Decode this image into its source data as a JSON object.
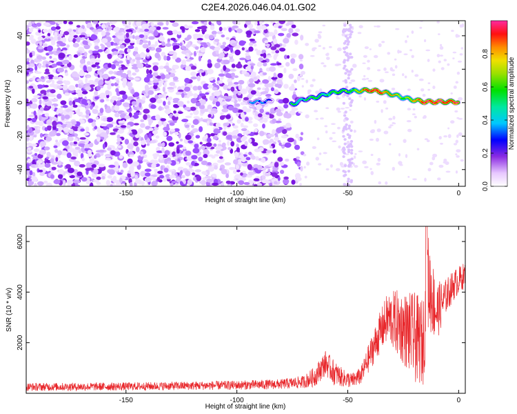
{
  "title": "C2E4.2026.046.04.01.G02",
  "chart_data": [
    {
      "type": "heatmap",
      "xlabel": "Height of straight line (km)",
      "ylabel": "Frequency (Hz)",
      "xlim": [
        -195,
        3
      ],
      "ylim": [
        -50,
        49
      ],
      "xticks": [
        -150,
        -100,
        -50,
        0
      ],
      "yticks": [
        -40,
        -20,
        0,
        20,
        40
      ],
      "colorbar": {
        "label": "Normalized spectral amplitude",
        "range": [
          0,
          1
        ],
        "ticks": [
          "0.0",
          "0.2",
          "0.4",
          "0.6",
          "0.8"
        ],
        "tick_values": [
          0.0,
          0.2,
          0.4,
          0.6,
          0.8
        ]
      },
      "ridge": {
        "description_points_height_km": [
          -94,
          -88,
          -84,
          -75,
          -70,
          -65,
          -60,
          -55,
          -50,
          -45,
          -40,
          -35,
          -30,
          -25,
          -20,
          -15,
          -10,
          -5,
          0
        ],
        "description_points_freq_hz": [
          0.5,
          0.5,
          1.5,
          -1,
          2,
          3,
          5,
          6.5,
          7,
          7,
          7.5,
          6.5,
          5,
          3,
          1.5,
          0.5,
          0.5,
          0.5,
          0.5
        ],
        "amplitude": [
          0.35,
          0.3,
          0.2,
          0.5,
          0.45,
          0.55,
          0.5,
          0.6,
          0.55,
          0.65,
          0.9,
          0.85,
          0.7,
          0.6,
          0.75,
          0.88,
          0.9,
          0.85,
          0.9
        ]
      }
    },
    {
      "type": "line",
      "xlabel": "Height of straight line (km)",
      "ylabel": "SNR (10 * v/v)",
      "xlim": [
        -195,
        3
      ],
      "ylim": [
        0,
        6600
      ],
      "xticks": [
        -150,
        -100,
        -50,
        0
      ],
      "yticks": [
        2000,
        4000,
        6000
      ],
      "color": "#e8262a",
      "envelope_x": [
        -195,
        -150,
        -100,
        -80,
        -70,
        -65,
        -60,
        -56,
        -52,
        -48,
        -44,
        -40,
        -36,
        -32,
        -28,
        -24,
        -20,
        -16,
        -14,
        -10,
        -6,
        -2,
        3
      ],
      "envelope_mean": [
        250,
        270,
        320,
        360,
        450,
        650,
        1200,
        800,
        600,
        500,
        700,
        1500,
        2300,
        3000,
        2800,
        2500,
        2200,
        2000,
        4500,
        3200,
        3800,
        4300,
        4700
      ],
      "envelope_spread": [
        160,
        160,
        180,
        200,
        250,
        400,
        500,
        500,
        350,
        300,
        350,
        600,
        800,
        1000,
        1300,
        1500,
        1800,
        1700,
        2000,
        1200,
        700,
        600,
        500
      ]
    }
  ]
}
